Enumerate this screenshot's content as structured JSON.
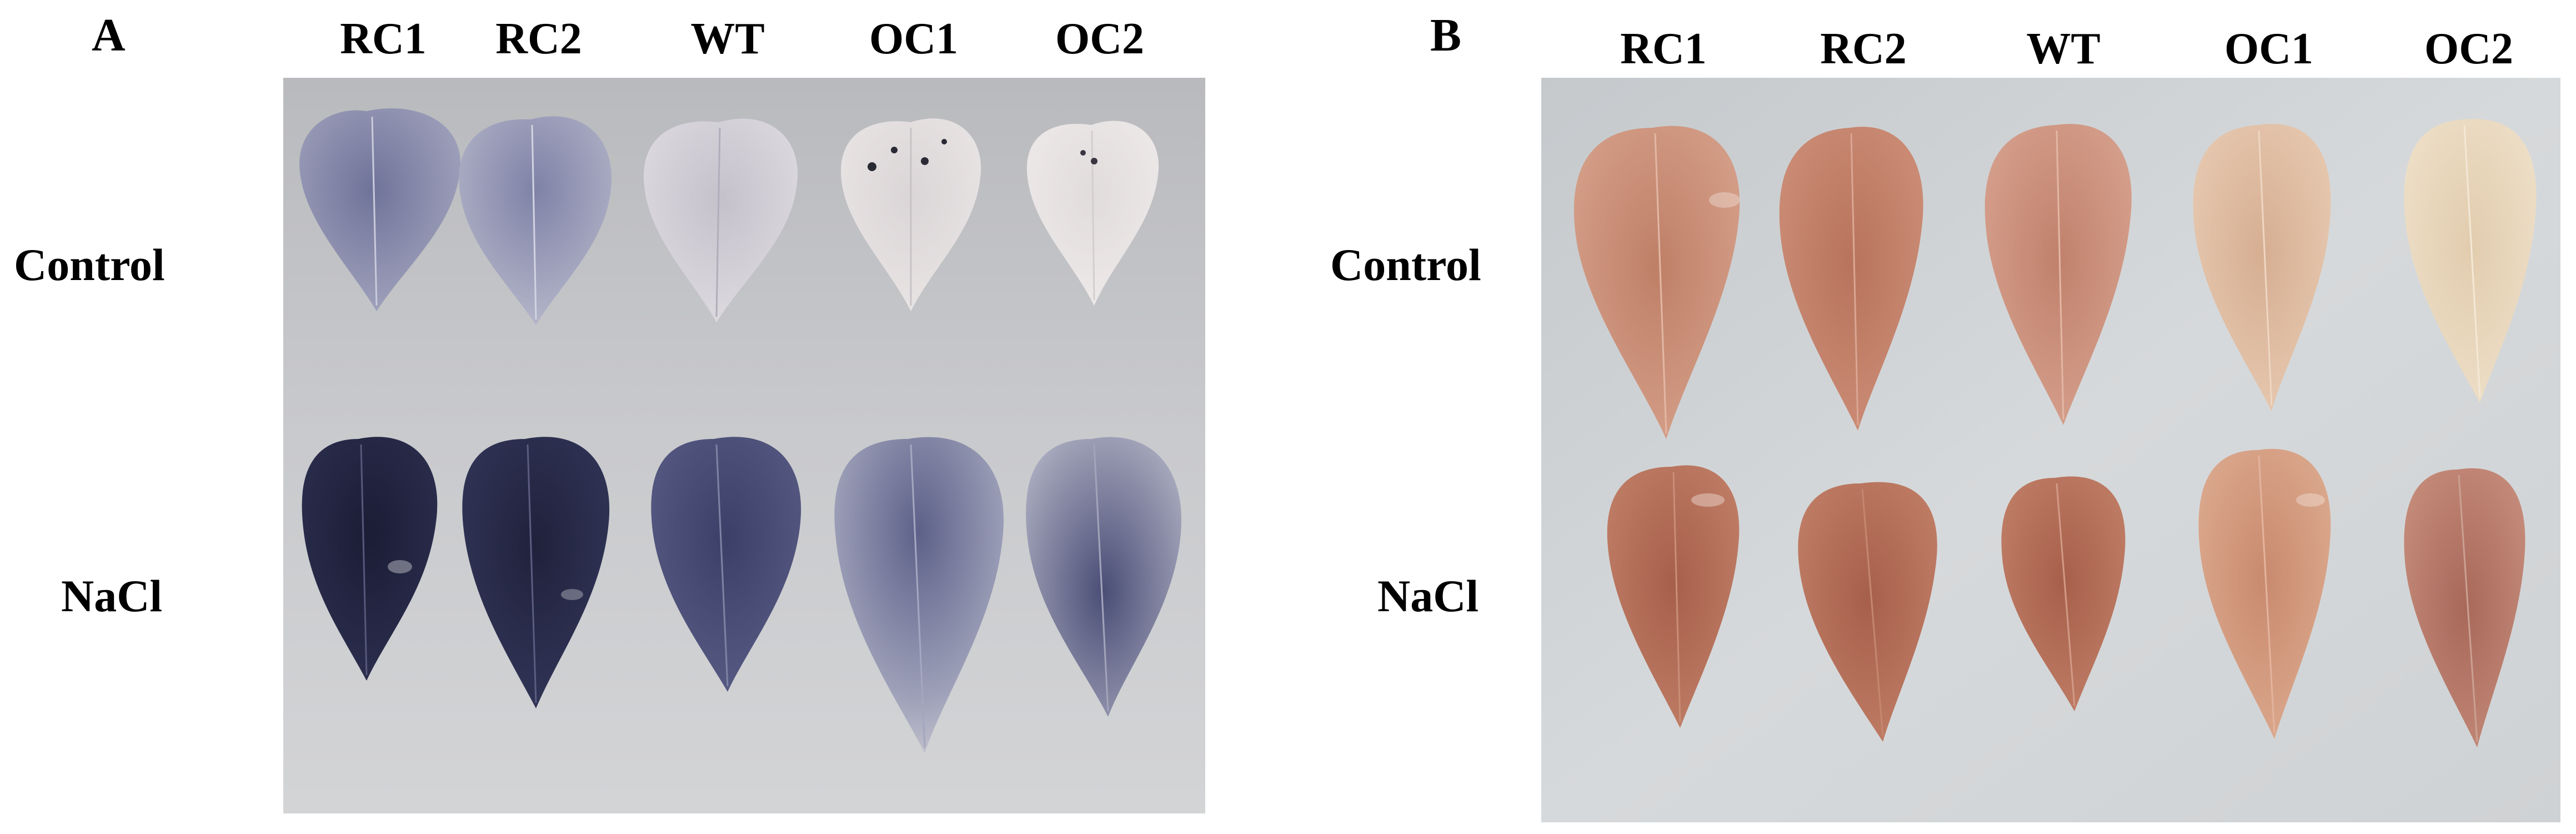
{
  "figure": {
    "panel_a": {
      "letter": "A",
      "columns": [
        "RC1",
        "RC2",
        "WT",
        "OC1",
        "OC2"
      ],
      "rows": [
        "Control",
        "NaCl"
      ]
    },
    "panel_b": {
      "letter": "B",
      "columns": [
        "RC1",
        "RC2",
        "WT",
        "OC1",
        "OC2"
      ],
      "rows": [
        "Control",
        "NaCl"
      ]
    }
  },
  "colors": {
    "panel_a_background": "#c8c9cc",
    "panel_b_background": "#d2d5d8",
    "nbt_control_dark": "#7e82a6",
    "nbt_control_light": "#e3dfe2",
    "nbt_nacl_dark": "#1f2140",
    "nbt_nacl_medium": "#5d6189",
    "dab_control": "#c88a74",
    "dab_control_pale": "#e6d3b8",
    "dab_nacl": "#b06a55"
  }
}
